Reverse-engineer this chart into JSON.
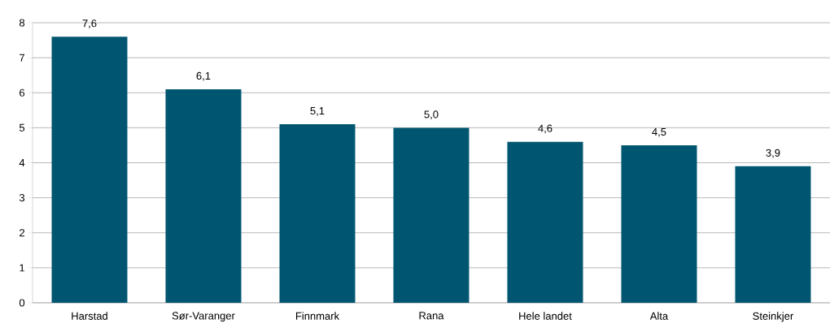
{
  "chart_data": {
    "type": "bar",
    "categories": [
      "Harstad",
      "Sør-Varanger",
      "Finnmark",
      "Rana",
      "Hele landet",
      "Alta",
      "Steinkjer"
    ],
    "values": [
      7.6,
      6.1,
      5.1,
      5.0,
      4.6,
      4.5,
      3.9
    ],
    "value_labels": [
      "7,6",
      "6,1",
      "5,1",
      "5,0",
      "4,6",
      "4,5",
      "3,9"
    ],
    "color": "#005670",
    "ylim": [
      0,
      8
    ],
    "yticks": [
      0,
      1,
      2,
      3,
      4,
      5,
      6,
      7,
      8
    ],
    "grid": "y"
  }
}
